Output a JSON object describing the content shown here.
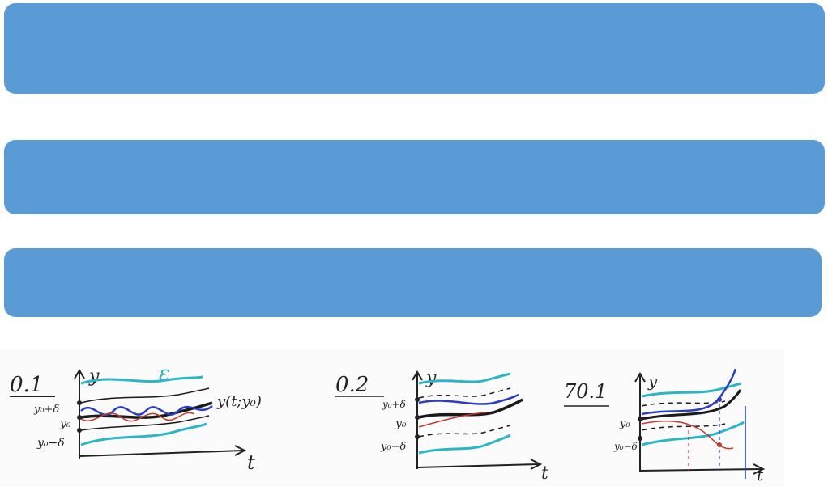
{
  "blocks": [
    {
      "text": ""
    },
    {
      "text": ""
    },
    {
      "text": ""
    }
  ],
  "sketches": {
    "panel1": {
      "label": "0.1",
      "y_axis": "y",
      "x_axis": "t",
      "epsilon": "ε",
      "upper": "y₀+δ",
      "center": "y₀",
      "lower": "y₀−δ",
      "curve": "y(t;y₀)"
    },
    "panel2": {
      "label": "0.2",
      "y_axis": "y",
      "x_axis": "t",
      "upper": "y₀+δ",
      "center": "y₀",
      "lower": "y₀−δ"
    },
    "panel3": {
      "label": "70.1",
      "y_axis": "y",
      "x_axis": "t",
      "center": "y₀",
      "lower": "y₀−δ"
    }
  },
  "colors": {
    "bar": "#5b9bd5",
    "cyan": "#2bb6c8",
    "blue": "#2a3cc0",
    "red": "#c0392b",
    "black": "#1a1a1a"
  }
}
